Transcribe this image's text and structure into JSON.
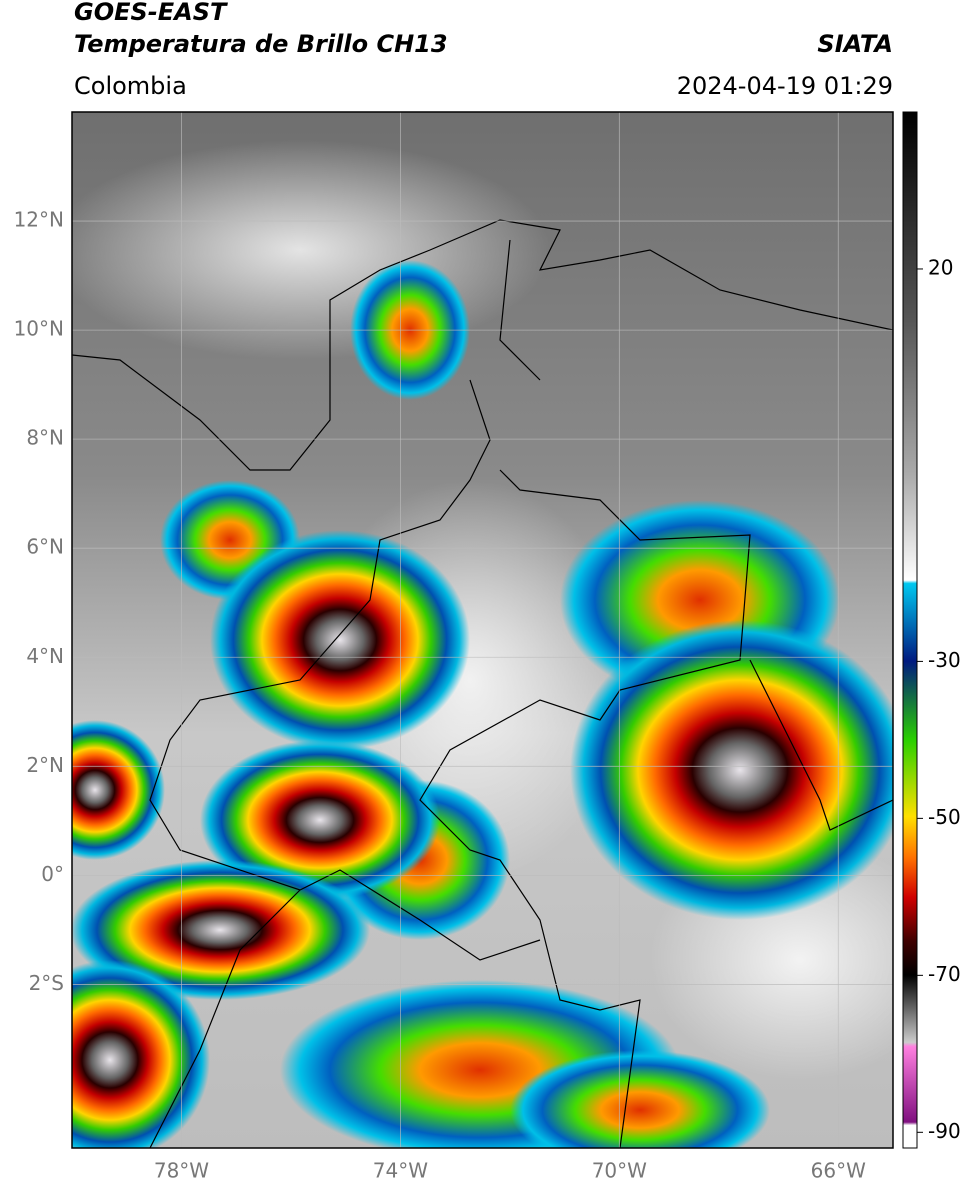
{
  "header": {
    "satellite": "GOES-EAST",
    "product": "Temperatura de Brillo CH13",
    "source": "SIATA",
    "region": "Colombia",
    "datetime": "2024-04-19 01:29"
  },
  "map": {
    "xlim": [
      -80,
      -65
    ],
    "ylim": [
      -5,
      14
    ],
    "grid": true,
    "xticks": [
      {
        "value": -78,
        "label": "78°W"
      },
      {
        "value": -74,
        "label": "74°W"
      },
      {
        "value": -70,
        "label": "70°W"
      },
      {
        "value": -66,
        "label": "66°W"
      }
    ],
    "yticks": [
      {
        "value": 12,
        "label": "12°N"
      },
      {
        "value": 10,
        "label": "10°N"
      },
      {
        "value": 8,
        "label": "8°N"
      },
      {
        "value": 6,
        "label": "6°N"
      },
      {
        "value": 4,
        "label": "4°N"
      },
      {
        "value": 2,
        "label": "2°N"
      },
      {
        "value": 0,
        "label": "0°"
      },
      {
        "value": -2,
        "label": "2°S"
      }
    ]
  },
  "colorbar": {
    "lim": [
      -92,
      40
    ],
    "ticks": [
      20,
      -30,
      -50,
      -70,
      -90
    ]
  }
}
